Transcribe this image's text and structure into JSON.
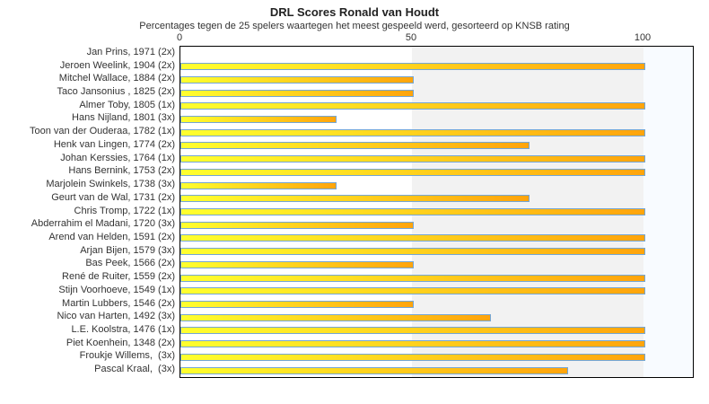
{
  "title": "DRL Scores Ronald van Houdt",
  "subtitle": "Percentages tegen de 25 spelers waartegen het meest gespeeld werd, gesorteerd op KNSB rating",
  "chart_data": {
    "type": "bar",
    "orientation": "horizontal",
    "title": "DRL Scores Ronald van Houdt",
    "subtitle": "Percentages tegen de 25 spelers waartegen het meest gespeeld werd, gesorteerd op KNSB rating",
    "xlabel": "",
    "ylabel": "",
    "xlim": [
      0,
      110.8
    ],
    "xticks": [
      0,
      50,
      100
    ],
    "grid": false,
    "legend": "none",
    "categories": [
      "Jan Prins, 1971 (2x)",
      "Jeroen Weelink, 1904 (2x)",
      "Mitchel Wallace, 1884 (2x)",
      "Taco Jansonius , 1825 (2x)",
      "Almer Toby, 1805 (1x)",
      "Hans Nijland, 1801 (3x)",
      "Toon van der Ouderaa, 1782 (1x)",
      "Henk van Lingen, 1774 (2x)",
      "Johan Kerssies, 1764 (1x)",
      "Hans Bernink, 1753 (2x)",
      "Marjolein Swinkels, 1738 (3x)",
      "Geurt van de Wal, 1731 (2x)",
      "Chris Tromp, 1722 (1x)",
      "Abderrahim el Madani, 1720 (3x)",
      "Arend van Helden, 1591 (2x)",
      "Arjan Bijen, 1579 (3x)",
      "Bas Peek, 1566 (2x)",
      "René de Ruiter, 1559 (2x)",
      "Stijn Voorhoeve, 1549 (1x)",
      "Martin Lubbers, 1546 (2x)",
      "Nico van Harten, 1492 (3x)",
      "L.E. Koolstra, 1476 (1x)",
      "Piet Koenhein, 1348 (2x)",
      "Froukje Willems,  (3x)",
      "Pascal Kraal,  (3x)"
    ],
    "values": [
      0,
      100,
      50,
      50,
      100,
      33.3,
      100,
      75,
      100,
      100,
      33.3,
      75,
      100,
      50,
      100,
      100,
      50,
      100,
      100,
      50,
      66.7,
      100,
      100,
      100,
      83.3
    ],
    "x_bands": [
      {
        "from": 0,
        "to": 50,
        "color": "#ffffff"
      },
      {
        "from": 50,
        "to": 100,
        "color": "#f2f2f2"
      },
      {
        "from": 100,
        "to": 110.8,
        "color": "#f8fbff"
      }
    ],
    "colors": {
      "bar_gradient_start": "#ffff2e",
      "bar_gradient_end": "#ffa40c",
      "bar_border": "#74a6d4",
      "plot_border": "#000000",
      "text": "#333333"
    }
  }
}
